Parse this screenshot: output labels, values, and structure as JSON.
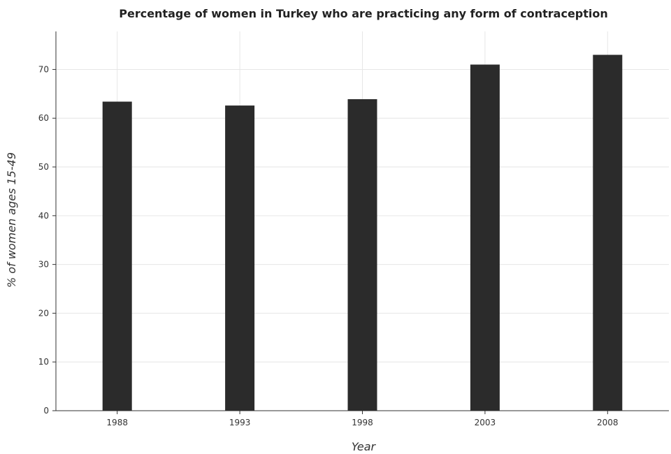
{
  "chart_data": {
    "type": "bar",
    "title": "Percentage of women in Turkey who are practicing any form of contraception",
    "xlabel": "Year",
    "ylabel": "% of women ages 15-49",
    "categories": [
      "1988",
      "1993",
      "1998",
      "2003",
      "2008"
    ],
    "values": [
      63.4,
      62.6,
      63.9,
      71.0,
      73.0
    ],
    "ylim": [
      0,
      77.8
    ],
    "yticks": [
      0,
      10,
      20,
      30,
      40,
      50,
      60,
      70
    ],
    "grid": true,
    "legend": "none",
    "bar_color": "#2b2b2b"
  }
}
